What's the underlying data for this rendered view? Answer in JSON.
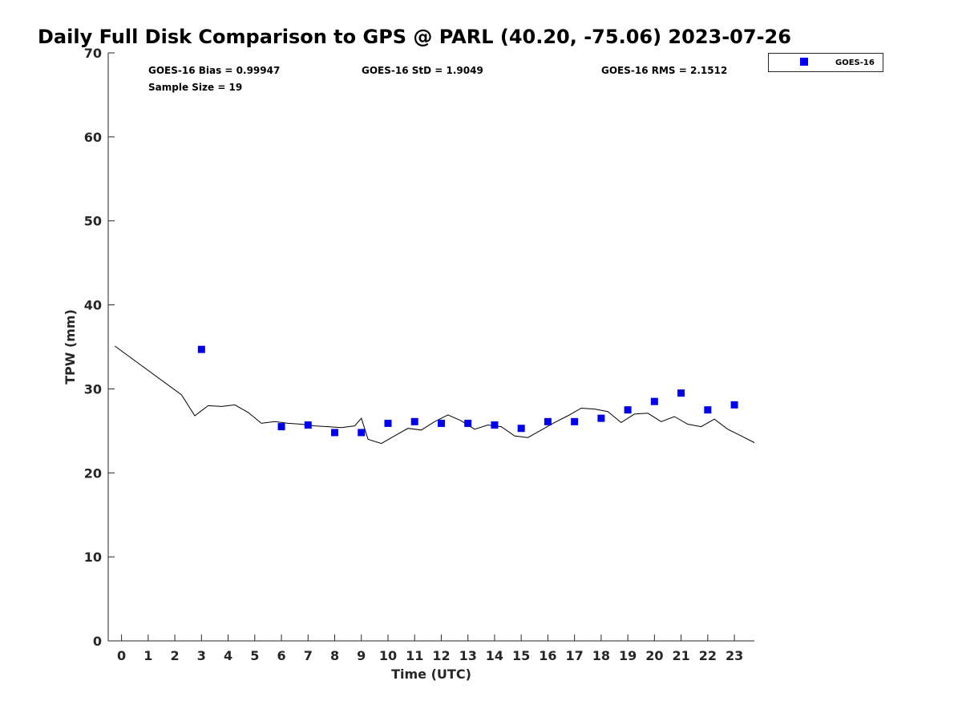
{
  "chart_data": {
    "type": "scatter",
    "title": "Daily Full Disk Comparison to GPS @ PARL (40.20, -75.06) 2023-07-26",
    "xlabel": "Time (UTC)",
    "ylabel": "TPW (mm)",
    "xlim": [
      -0.5,
      23.75
    ],
    "ylim": [
      0,
      70
    ],
    "xticks": [
      0,
      1,
      2,
      3,
      4,
      5,
      6,
      7,
      8,
      9,
      10,
      11,
      12,
      13,
      14,
      15,
      16,
      17,
      18,
      19,
      20,
      21,
      22,
      23
    ],
    "yticks": [
      0,
      10,
      20,
      30,
      40,
      50,
      60,
      70
    ],
    "grid": false,
    "legend": {
      "placement": "top-right-outside",
      "entries": [
        "GOES-16"
      ]
    },
    "stats": {
      "bias": "GOES-16 Bias = 0.99947",
      "std": "GOES-16 StD = 1.9049",
      "rms": "GOES-16 RMS = 2.1512",
      "sample_size": "Sample Size = 19"
    },
    "series": [
      {
        "name": "GOES-16",
        "kind": "scatter",
        "color": "#0000ee",
        "marker": "square",
        "x": [
          3,
          6,
          7,
          8,
          9,
          10,
          11,
          12,
          13,
          14,
          15,
          16,
          17,
          18,
          19,
          20,
          21,
          22,
          23
        ],
        "y": [
          34.7,
          25.5,
          25.7,
          24.8,
          24.8,
          25.9,
          26.1,
          25.9,
          25.9,
          25.7,
          25.3,
          26.1,
          26.1,
          26.5,
          27.5,
          28.5,
          29.5,
          27.5,
          28.1
        ]
      },
      {
        "kind": "line",
        "color": "#000000",
        "x": [
          -0.25,
          2.25,
          2.75,
          3.25,
          3.75,
          4.25,
          4.75,
          5.25,
          5.75,
          6.25,
          6.75,
          7.25,
          7.75,
          8.25,
          8.75,
          9.0,
          9.25,
          9.75,
          10.25,
          10.75,
          11.25,
          11.75,
          12.25,
          12.75,
          13.25,
          13.75,
          14.25,
          14.75,
          15.25,
          15.75,
          16.25,
          16.75,
          17.25,
          17.75,
          18.25,
          18.75,
          19.25,
          19.75,
          20.25,
          20.75,
          21.25,
          21.75,
          22.25,
          22.75,
          23.25,
          23.75
        ],
        "y": [
          35.1,
          29.3,
          26.8,
          28.0,
          27.9,
          28.1,
          27.2,
          25.9,
          26.1,
          25.9,
          25.8,
          25.6,
          25.5,
          25.4,
          25.6,
          26.5,
          24.0,
          23.5,
          24.4,
          25.3,
          25.1,
          26.1,
          26.9,
          26.2,
          25.2,
          25.7,
          25.5,
          24.4,
          24.2,
          25.1,
          26.0,
          26.8,
          27.7,
          27.6,
          27.3,
          26.0,
          27.0,
          27.1,
          26.1,
          26.7,
          25.8,
          25.5,
          26.4,
          25.2,
          24.4,
          23.6
        ]
      }
    ]
  }
}
